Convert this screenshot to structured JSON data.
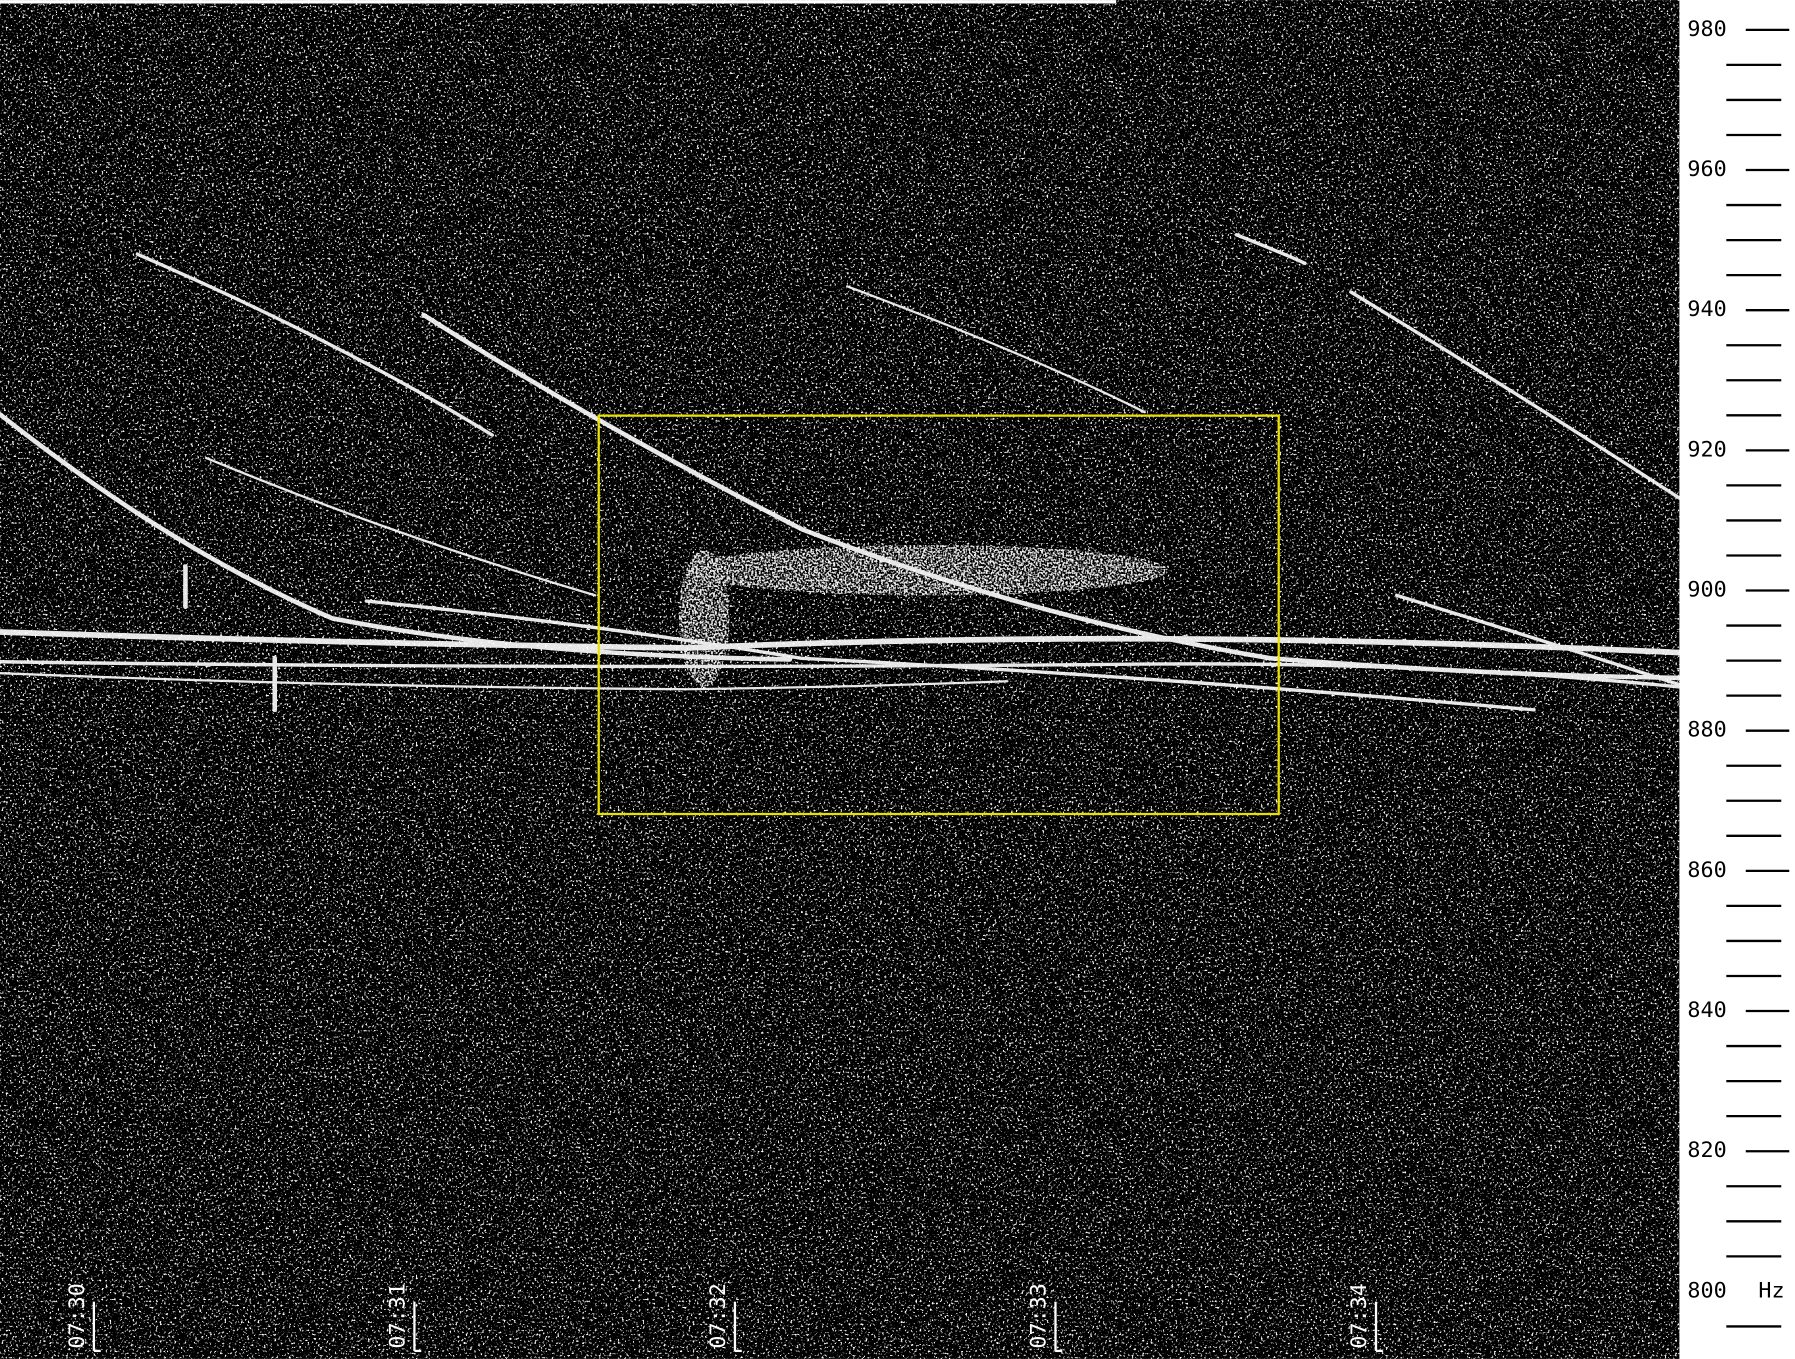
{
  "frequency_axis": {
    "ticks": [
      980,
      960,
      940,
      920,
      900,
      880,
      860,
      840,
      820,
      800
    ],
    "unit": "Hz"
  },
  "time_axis": {
    "ticks": [
      "07:30",
      "07:31",
      "07:32",
      "07:33",
      "07:34"
    ]
  }
}
